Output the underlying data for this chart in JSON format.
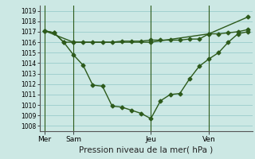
{
  "bg_color": "#cce8e4",
  "grid_color": "#99cccc",
  "line_color": "#2d5a1b",
  "line_width": 1.0,
  "marker": "D",
  "marker_size": 2.5,
  "ylim": [
    1007.5,
    1019.5
  ],
  "yticks": [
    1008,
    1009,
    1010,
    1011,
    1012,
    1013,
    1014,
    1015,
    1016,
    1017,
    1018,
    1019
  ],
  "xlabel": "Pression niveau de la mer( hPa )",
  "xlabel_fontsize": 7.5,
  "day_labels": [
    "Mer",
    "Sam",
    "Jeu",
    "Ven"
  ],
  "day_positions": [
    0,
    3,
    11,
    17
  ],
  "num_points": 22,
  "series_dip": [
    1017.1,
    1016.9,
    1016.0,
    1014.8,
    1013.8,
    1011.9,
    1011.8,
    1009.9,
    1009.8,
    1009.5,
    1009.2,
    1008.7,
    1010.4,
    1011.0,
    1011.1,
    1012.5,
    1013.7,
    1014.4,
    1015.0,
    1016.0,
    1016.8,
    1017.0
  ],
  "series_flat": [
    1017.1,
    1016.9,
    1016.0,
    1016.0,
    1016.0,
    1016.0,
    1016.0,
    1016.0,
    1016.1,
    1016.1,
    1016.1,
    1016.2,
    1016.2,
    1016.2,
    1016.2,
    1016.3,
    1016.3,
    1016.8,
    1016.8,
    1016.9,
    1017.0,
    1017.2
  ],
  "series_diag_x": [
    0,
    3,
    11,
    17,
    21
  ],
  "series_diag_y": [
    1017.1,
    1016.0,
    1016.0,
    1016.8,
    1018.4
  ]
}
